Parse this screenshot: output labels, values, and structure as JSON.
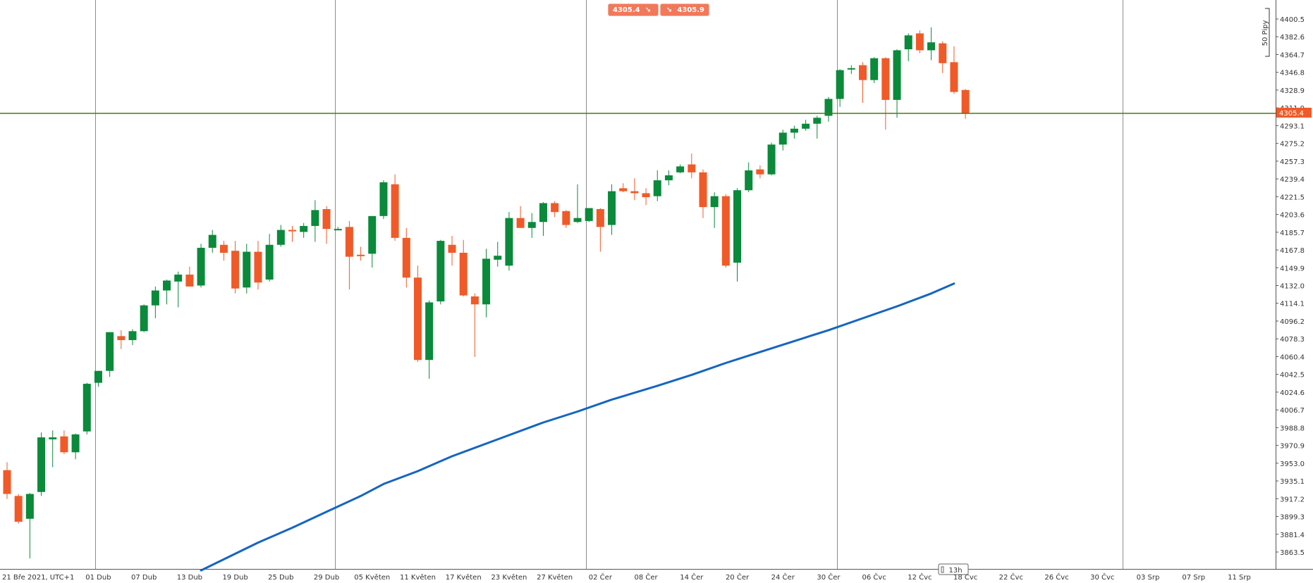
{
  "sell_badge": {
    "value": "4305.4",
    "icon": "arrow-down-right-icon"
  },
  "buy_badge": {
    "value": "4305.9",
    "icon": "arrow-down-right-icon"
  },
  "measure_label": "50 Pipy",
  "current_price_label": "4305.4",
  "time_label": "13h",
  "colors": {
    "up": "#0a8a3a",
    "down": "#f05a28",
    "ma": "#1565c0",
    "price_line": "#4a7a10",
    "badge": "#f2785a"
  },
  "chart_data": {
    "type": "candlestick",
    "title": "",
    "xlabel": "",
    "ylabel": "",
    "timezone_label": "21 Bře 2021, UTC+1",
    "ylim": [
      3845,
      4408
    ],
    "y_ticks": [
      4400.5,
      4382.6,
      4364.7,
      4346.8,
      4328.9,
      4311.0,
      4293.1,
      4275.2,
      4257.3,
      4239.4,
      4221.5,
      4203.6,
      4185.7,
      4167.8,
      4149.9,
      4132.0,
      4114.1,
      4096.2,
      4078.3,
      4060.4,
      4042.5,
      4024.6,
      4006.7,
      3988.8,
      3970.9,
      3953.0,
      3935.1,
      3917.2,
      3899.3,
      3881.4,
      3863.5
    ],
    "x_ticks": [
      {
        "label": "21 Bře 2021, UTC+1",
        "slot": 0
      },
      {
        "label": "01 Dub",
        "slot": 8
      },
      {
        "label": "07 Dub",
        "slot": 12
      },
      {
        "label": "13 Dub",
        "slot": 16
      },
      {
        "label": "19 Dub",
        "slot": 20
      },
      {
        "label": "25 Dub",
        "slot": 24
      },
      {
        "label": "29 Dub",
        "slot": 28
      },
      {
        "label": "05 Květen",
        "slot": 32
      },
      {
        "label": "11 Květen",
        "slot": 36
      },
      {
        "label": "17 Květen",
        "slot": 40
      },
      {
        "label": "23 Květen",
        "slot": 44
      },
      {
        "label": "27 Květen",
        "slot": 48
      },
      {
        "label": "02 Čer",
        "slot": 52
      },
      {
        "label": "08 Čer",
        "slot": 56
      },
      {
        "label": "14 Čer",
        "slot": 60
      },
      {
        "label": "20 Čer",
        "slot": 64
      },
      {
        "label": "24 Čer",
        "slot": 68
      },
      {
        "label": "30 Čer",
        "slot": 72
      },
      {
        "label": "06 Čvc",
        "slot": 76
      },
      {
        "label": "12 Čvc",
        "slot": 80
      },
      {
        "label": "18 Čvc",
        "slot": 84
      },
      {
        "label": "22 Čvc",
        "slot": 88
      },
      {
        "label": "26 Čvc",
        "slot": 92
      },
      {
        "label": "30 Čvc",
        "slot": 96
      },
      {
        "label": "03 Srp",
        "slot": 100
      },
      {
        "label": "07 Srp",
        "slot": 104
      },
      {
        "label": "11 Srp",
        "slot": 108
      }
    ],
    "separators": [
      8,
      29,
      51,
      73,
      98
    ],
    "current_price": 4305.4,
    "candles": [
      {
        "o": 3946,
        "h": 3954,
        "l": 3917,
        "c": 3922
      },
      {
        "o": 3920,
        "h": 3922,
        "l": 3892,
        "c": 3894
      },
      {
        "o": 3897,
        "h": 3923,
        "l": 3857,
        "c": 3922
      },
      {
        "o": 3924,
        "h": 3984,
        "l": 3920,
        "c": 3979
      },
      {
        "o": 3977,
        "h": 3986,
        "l": 3949,
        "c": 3979
      },
      {
        "o": 3980,
        "h": 3986,
        "l": 3962,
        "c": 3964
      },
      {
        "o": 3964,
        "h": 3983,
        "l": 3957,
        "c": 3982
      },
      {
        "o": 3985,
        "h": 4034,
        "l": 3982,
        "c": 4033
      },
      {
        "o": 4034,
        "h": 4046,
        "l": 4030,
        "c": 4046
      },
      {
        "o": 4046,
        "h": 4085,
        "l": 4040,
        "c": 4085
      },
      {
        "o": 4081,
        "h": 4087,
        "l": 4068,
        "c": 4077
      },
      {
        "o": 4077,
        "h": 4088,
        "l": 4072,
        "c": 4086
      },
      {
        "o": 4086,
        "h": 4113,
        "l": 4085,
        "c": 4112
      },
      {
        "o": 4112,
        "h": 4131,
        "l": 4099,
        "c": 4127
      },
      {
        "o": 4127,
        "h": 4138,
        "l": 4113,
        "c": 4137
      },
      {
        "o": 4136,
        "h": 4146,
        "l": 4110,
        "c": 4143
      },
      {
        "o": 4143,
        "h": 4151,
        "l": 4131,
        "c": 4131
      },
      {
        "o": 4132,
        "h": 4174,
        "l": 4130,
        "c": 4170
      },
      {
        "o": 4170,
        "h": 4188,
        "l": 4165,
        "c": 4183
      },
      {
        "o": 4173,
        "h": 4177,
        "l": 4157,
        "c": 4165
      },
      {
        "o": 4167,
        "h": 4177,
        "l": 4124,
        "c": 4129
      },
      {
        "o": 4130,
        "h": 4174,
        "l": 4124,
        "c": 4166
      },
      {
        "o": 4166,
        "h": 4177,
        "l": 4128,
        "c": 4135
      },
      {
        "o": 4138,
        "h": 4184,
        "l": 4136,
        "c": 4173
      },
      {
        "o": 4173,
        "h": 4193,
        "l": 4171,
        "c": 4188
      },
      {
        "o": 4188,
        "h": 4192,
        "l": 4176,
        "c": 4187
      },
      {
        "o": 4186,
        "h": 4195,
        "l": 4180,
        "c": 4192
      },
      {
        "o": 4192,
        "h": 4218,
        "l": 4176,
        "c": 4208
      },
      {
        "o": 4209,
        "h": 4212,
        "l": 4174,
        "c": 4189
      },
      {
        "o": 4189,
        "h": 4191,
        "l": 4189,
        "c": 4189
      },
      {
        "o": 4191,
        "h": 4197,
        "l": 4128,
        "c": 4161
      },
      {
        "o": 4163,
        "h": 4171,
        "l": 4157,
        "c": 4162
      },
      {
        "o": 4164,
        "h": 4202,
        "l": 4150,
        "c": 4202
      },
      {
        "o": 4202,
        "h": 4238,
        "l": 4199,
        "c": 4236
      },
      {
        "o": 4234,
        "h": 4244,
        "l": 4177,
        "c": 4180
      },
      {
        "o": 4180,
        "h": 4190,
        "l": 4130,
        "c": 4140
      },
      {
        "o": 4140,
        "h": 4152,
        "l": 4055,
        "c": 4057
      },
      {
        "o": 4057,
        "h": 4117,
        "l": 4038,
        "c": 4115
      },
      {
        "o": 4116,
        "h": 4178,
        "l": 4113,
        "c": 4177
      },
      {
        "o": 4173,
        "h": 4182,
        "l": 4152,
        "c": 4165
      },
      {
        "o": 4165,
        "h": 4178,
        "l": 4121,
        "c": 4122
      },
      {
        "o": 4121,
        "h": 4124,
        "l": 4060,
        "c": 4113
      },
      {
        "o": 4113,
        "h": 4169,
        "l": 4100,
        "c": 4159
      },
      {
        "o": 4158,
        "h": 4176,
        "l": 4151,
        "c": 4162
      },
      {
        "o": 4152,
        "h": 4206,
        "l": 4147,
        "c": 4200
      },
      {
        "o": 4200,
        "h": 4212,
        "l": 4190,
        "c": 4190
      },
      {
        "o": 4190,
        "h": 4205,
        "l": 4180,
        "c": 4196
      },
      {
        "o": 4196,
        "h": 4216,
        "l": 4182,
        "c": 4215
      },
      {
        "o": 4215,
        "h": 4217,
        "l": 4201,
        "c": 4206
      },
      {
        "o": 4207,
        "h": 4208,
        "l": 4190,
        "c": 4193
      },
      {
        "o": 4196,
        "h": 4234,
        "l": 4195,
        "c": 4200
      },
      {
        "o": 4197,
        "h": 4210,
        "l": 4196,
        "c": 4210
      },
      {
        "o": 4209,
        "h": 4210,
        "l": 4166,
        "c": 4191
      },
      {
        "o": 4193,
        "h": 4234,
        "l": 4183,
        "c": 4227
      },
      {
        "o": 4230,
        "h": 4235,
        "l": 4226,
        "c": 4227
      },
      {
        "o": 4227,
        "h": 4240,
        "l": 4218,
        "c": 4225
      },
      {
        "o": 4225,
        "h": 4230,
        "l": 4213,
        "c": 4221
      },
      {
        "o": 4222,
        "h": 4248,
        "l": 4217,
        "c": 4238
      },
      {
        "o": 4238,
        "h": 4248,
        "l": 4233,
        "c": 4243
      },
      {
        "o": 4246,
        "h": 4254,
        "l": 4245,
        "c": 4252
      },
      {
        "o": 4254,
        "h": 4265,
        "l": 4240,
        "c": 4246
      },
      {
        "o": 4246,
        "h": 4249,
        "l": 4200,
        "c": 4211
      },
      {
        "o": 4211,
        "h": 4226,
        "l": 4190,
        "c": 4222
      },
      {
        "o": 4222,
        "h": 4224,
        "l": 4150,
        "c": 4152
      },
      {
        "o": 4155,
        "h": 4230,
        "l": 4136,
        "c": 4228
      },
      {
        "o": 4228,
        "h": 4256,
        "l": 4226,
        "c": 4248
      },
      {
        "o": 4249,
        "h": 4253,
        "l": 4240,
        "c": 4244
      },
      {
        "o": 4244,
        "h": 4276,
        "l": 4243,
        "c": 4274
      },
      {
        "o": 4274,
        "h": 4289,
        "l": 4268,
        "c": 4286
      },
      {
        "o": 4286,
        "h": 4293,
        "l": 4280,
        "c": 4290
      },
      {
        "o": 4290,
        "h": 4299,
        "l": 4288,
        "c": 4295
      },
      {
        "o": 4295,
        "h": 4303,
        "l": 4280,
        "c": 4301
      },
      {
        "o": 4303,
        "h": 4322,
        "l": 4297,
        "c": 4320
      },
      {
        "o": 4320,
        "h": 4350,
        "l": 4312,
        "c": 4349
      },
      {
        "o": 4350,
        "h": 4354,
        "l": 4345,
        "c": 4351
      },
      {
        "o": 4354,
        "h": 4357,
        "l": 4316,
        "c": 4339
      },
      {
        "o": 4339,
        "h": 4362,
        "l": 4336,
        "c": 4361
      },
      {
        "o": 4361,
        "h": 4362,
        "l": 4289,
        "c": 4319
      },
      {
        "o": 4319,
        "h": 4370,
        "l": 4301,
        "c": 4369
      },
      {
        "o": 4370,
        "h": 4386,
        "l": 4358,
        "c": 4384
      },
      {
        "o": 4386,
        "h": 4389,
        "l": 4366,
        "c": 4369
      },
      {
        "o": 4369,
        "h": 4392,
        "l": 4359,
        "c": 4377
      },
      {
        "o": 4376,
        "h": 4378,
        "l": 4346,
        "c": 4356
      },
      {
        "o": 4357,
        "h": 4373,
        "l": 4325,
        "c": 4327
      },
      {
        "o": 4329,
        "h": 4330,
        "l": 4300,
        "c": 4305.4
      }
    ],
    "ma_series": {
      "slots": [
        17,
        22,
        25,
        28,
        31,
        33,
        36,
        39,
        43,
        47,
        50,
        53,
        57,
        60,
        63,
        66,
        69,
        72,
        75,
        78,
        81,
        83
      ],
      "values": [
        3845,
        3873,
        3888,
        3904,
        3920,
        3932,
        3945,
        3960,
        3977,
        3994,
        4005,
        4017,
        4031,
        4042,
        4054,
        4065,
        4076,
        4087,
        4099,
        4111,
        4124,
        4134
      ]
    }
  }
}
